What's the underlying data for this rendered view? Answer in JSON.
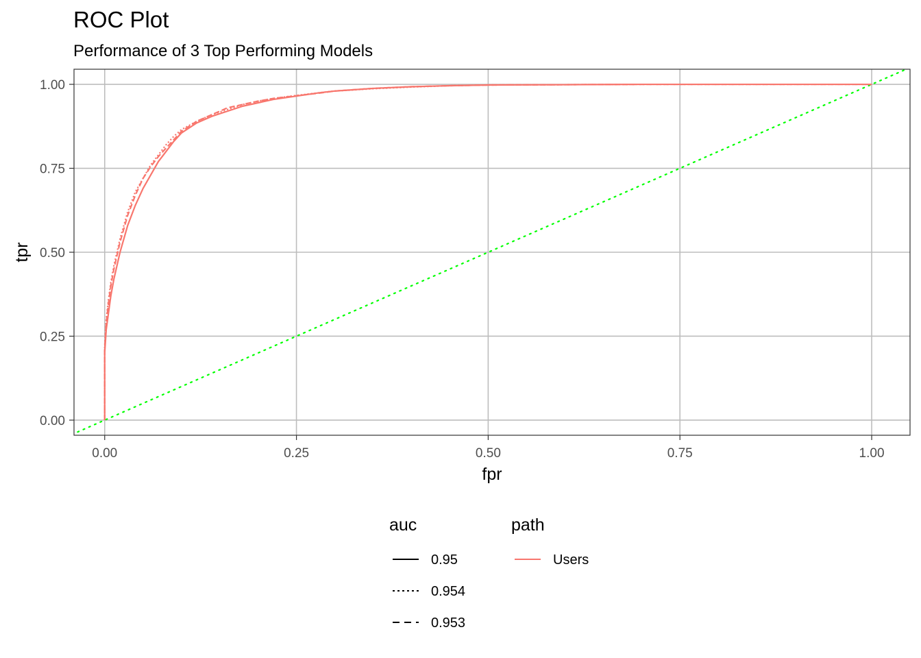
{
  "chart_data": {
    "type": "line",
    "title": "ROC Plot",
    "subtitle": "Performance of 3 Top Performing Models",
    "xlabel": "fpr",
    "ylabel": "tpr",
    "xlim": [
      -0.04,
      1.05
    ],
    "ylim": [
      -0.045,
      1.045
    ],
    "x_ticks": [
      0,
      0.25,
      0.5,
      0.75,
      1
    ],
    "x_tick_labels": [
      "0.00",
      "0.25",
      "0.50",
      "0.75",
      "1.00"
    ],
    "y_ticks": [
      0,
      0.25,
      0.5,
      0.75,
      1
    ],
    "y_tick_labels": [
      "0.00",
      "0.25",
      "0.50",
      "0.75",
      "1.00"
    ],
    "grid": true,
    "legend_position": "bottom",
    "colors": {
      "roc": "#F8766D",
      "reference": "#00FF00",
      "grid": "#bdbdbd",
      "legend_key": "#000000"
    },
    "legends": {
      "auc": {
        "title": "auc",
        "entries": [
          {
            "label": "0.95",
            "linetype": "solid"
          },
          {
            "label": "0.954",
            "linetype": "dotted"
          },
          {
            "label": "0.953",
            "linetype": "dashed"
          }
        ]
      },
      "path": {
        "title": "path",
        "entries": [
          {
            "label": "Users",
            "color": "#F8766D"
          }
        ]
      }
    },
    "reference_line": {
      "linetype": "dotted",
      "x": [
        -0.05,
        1.06
      ],
      "y": [
        -0.05,
        1.06
      ]
    },
    "series": [
      {
        "auc": "0.95",
        "path": "Users",
        "linetype": "solid",
        "x": [
          0,
          0,
          0.002,
          0.005,
          0.008,
          0.012,
          0.016,
          0.02,
          0.025,
          0.03,
          0.035,
          0.04,
          0.05,
          0.06,
          0.07,
          0.08,
          0.09,
          0.1,
          0.12,
          0.14,
          0.16,
          0.18,
          0.2,
          0.22,
          0.25,
          0.28,
          0.3,
          0.35,
          0.4,
          0.45,
          0.5,
          0.6,
          0.7,
          0.8,
          0.9,
          1
        ],
        "y": [
          0,
          0.2,
          0.27,
          0.32,
          0.37,
          0.42,
          0.46,
          0.5,
          0.54,
          0.58,
          0.61,
          0.64,
          0.69,
          0.73,
          0.77,
          0.8,
          0.83,
          0.855,
          0.885,
          0.905,
          0.92,
          0.935,
          0.945,
          0.955,
          0.965,
          0.975,
          0.98,
          0.988,
          0.993,
          0.996,
          0.998,
          0.999,
          1,
          1,
          1,
          1
        ]
      },
      {
        "auc": "0.954",
        "path": "Users",
        "linetype": "dotted",
        "x": [
          0,
          0,
          0.002,
          0.005,
          0.008,
          0.012,
          0.016,
          0.02,
          0.025,
          0.03,
          0.035,
          0.04,
          0.05,
          0.06,
          0.07,
          0.08,
          0.09,
          0.1,
          0.12,
          0.14,
          0.16,
          0.18,
          0.2,
          0.22,
          0.25,
          0.28,
          0.3,
          0.35,
          0.4,
          0.45,
          0.5,
          0.6,
          0.7,
          0.8,
          0.9,
          1
        ],
        "y": [
          0,
          0.22,
          0.3,
          0.36,
          0.41,
          0.46,
          0.5,
          0.54,
          0.58,
          0.62,
          0.65,
          0.68,
          0.72,
          0.76,
          0.79,
          0.82,
          0.845,
          0.865,
          0.89,
          0.91,
          0.925,
          0.94,
          0.95,
          0.958,
          0.967,
          0.975,
          0.98,
          0.987,
          0.992,
          0.996,
          0.998,
          0.999,
          1,
          1,
          1,
          1
        ]
      },
      {
        "auc": "0.953",
        "path": "Users",
        "linetype": "dashed",
        "x": [
          0,
          0,
          0.002,
          0.005,
          0.008,
          0.012,
          0.016,
          0.02,
          0.025,
          0.03,
          0.035,
          0.04,
          0.05,
          0.06,
          0.07,
          0.08,
          0.09,
          0.1,
          0.12,
          0.14,
          0.16,
          0.18,
          0.2,
          0.22,
          0.25,
          0.28,
          0.3,
          0.35,
          0.4,
          0.45,
          0.5,
          0.6,
          0.7,
          0.8,
          0.9,
          1
        ],
        "y": [
          0,
          0.21,
          0.29,
          0.35,
          0.4,
          0.45,
          0.49,
          0.53,
          0.57,
          0.61,
          0.64,
          0.67,
          0.72,
          0.755,
          0.785,
          0.81,
          0.835,
          0.86,
          0.89,
          0.91,
          0.93,
          0.94,
          0.95,
          0.958,
          0.966,
          0.974,
          0.98,
          0.988,
          0.993,
          0.996,
          0.998,
          0.999,
          1,
          1,
          1,
          1
        ]
      }
    ]
  }
}
